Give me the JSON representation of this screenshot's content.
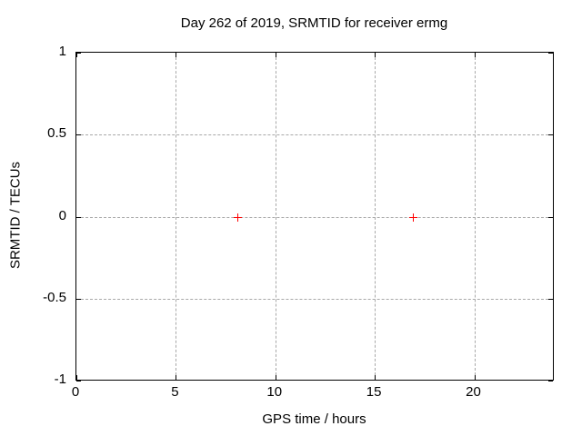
{
  "chart_data": {
    "type": "scatter",
    "title": "Day 262 of 2019, SRMTID for receiver ermg",
    "xlabel": "GPS time / hours",
    "ylabel": "SRMTID / TECUs",
    "xlim": [
      0,
      24
    ],
    "ylim": [
      -1,
      1
    ],
    "xticks": [
      0,
      5,
      10,
      15,
      20
    ],
    "yticks": [
      -1,
      -0.5,
      0,
      0.5,
      1
    ],
    "grid": true,
    "grid_xticks": [
      5,
      10,
      15,
      20
    ],
    "grid_yticks": [
      -0.5,
      0,
      0.5
    ],
    "legend_position": "none",
    "series": [
      {
        "name": "SRMTID",
        "marker": "plus",
        "color": "#ff0000",
        "points": [
          [
            8.1,
            0.0
          ],
          [
            16.9,
            0.0
          ]
        ]
      }
    ],
    "colors": {
      "background": "#ffffff",
      "border": "#000000",
      "grid": "#a8a8a8",
      "text": "#000000",
      "marker": "#ff0000"
    }
  }
}
